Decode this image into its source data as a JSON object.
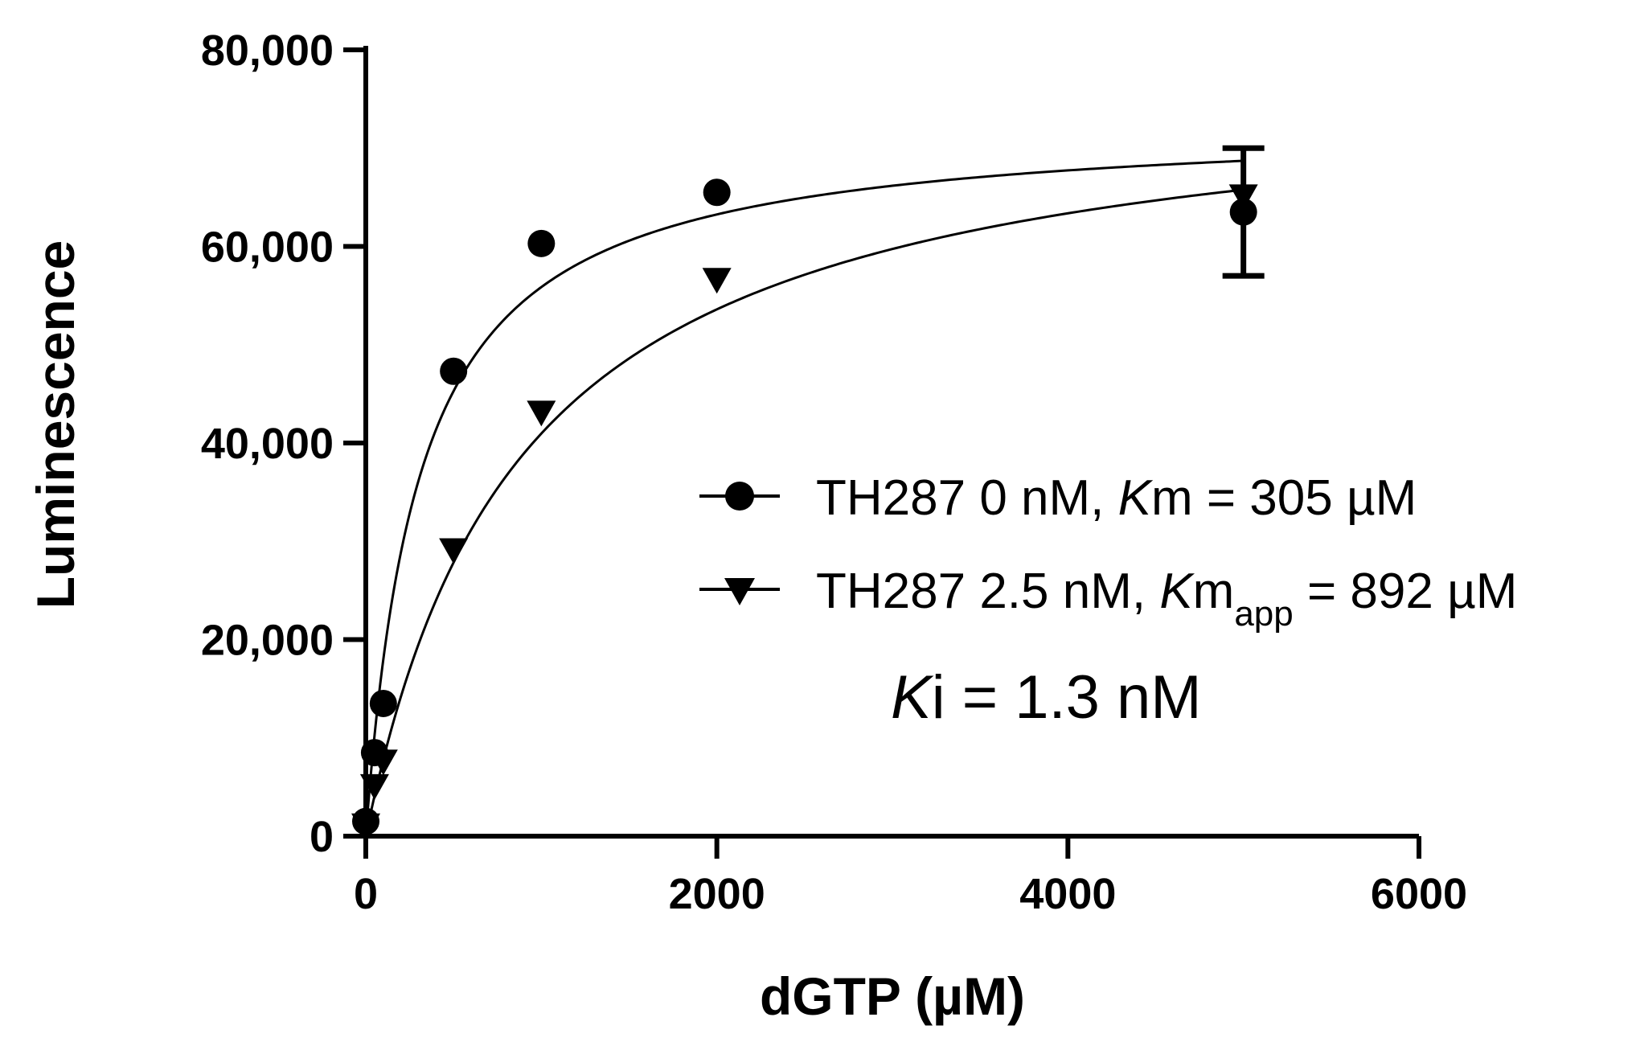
{
  "chart_data": {
    "type": "scatter",
    "xlabel": "dGTP (µM)",
    "ylabel": "Luminescence",
    "xlim": [
      0,
      6000
    ],
    "ylim": [
      0,
      80000
    ],
    "xticks": [
      0,
      2000,
      4000,
      6000
    ],
    "xtick_labels": [
      "0",
      "2000",
      "4000",
      "6000"
    ],
    "yticks": [
      0,
      20000,
      40000,
      60000,
      80000
    ],
    "ytick_labels": [
      "0",
      "20,000",
      "40,000",
      "60,000",
      "80,000"
    ],
    "grid": false,
    "legend_position": "center-right",
    "series": [
      {
        "name": "TH287 0 nM, Km = 305 µM",
        "marker": "circle",
        "x": [
          0,
          50,
          100,
          500,
          1000,
          2000,
          5000
        ],
        "y": [
          1500,
          8500,
          13500,
          47300,
          60300,
          65500,
          63500
        ],
        "fit": {
          "model": "michaelis-menten",
          "vmax": 72900,
          "km": 305
        },
        "error_bars": [
          null,
          null,
          null,
          null,
          null,
          null,
          6500
        ]
      },
      {
        "name": "TH287 2.5 nM, Kmapp = 892 µM",
        "marker": "triangle-down",
        "x": [
          0,
          50,
          100,
          500,
          1000,
          2000,
          5000
        ],
        "y": [
          1000,
          5000,
          7500,
          29000,
          43000,
          56500,
          65000
        ],
        "fit": {
          "model": "michaelis-menten",
          "vmax": 77500,
          "km": 892
        }
      }
    ],
    "legend": [
      {
        "prefix": "TH287 0 nM, ",
        "italic": "K",
        "main": "m = 305 µM",
        "sub": "",
        "suffix": ""
      },
      {
        "prefix": "TH287 2.5 nM, ",
        "italic": "K",
        "main": "m",
        "sub": "app",
        "suffix": " = 892 µM"
      }
    ],
    "annotation": {
      "italic": "K",
      "rest": "i = 1.3 nM"
    }
  }
}
